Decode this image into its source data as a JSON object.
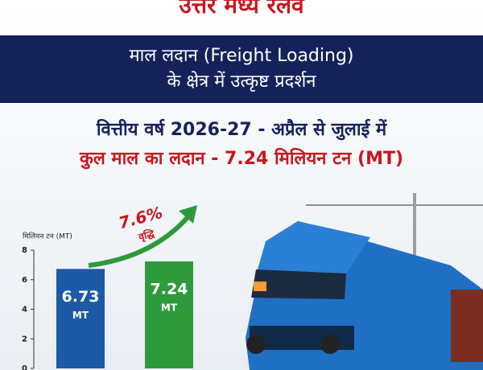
{
  "header": {
    "title": "उत्तर मध्य रेलवे",
    "banner_line1": "माल लदान (Freight Loading)",
    "banner_line2": "के क्षेत्र में उत्कृष्ट प्रदर्शन",
    "subtitle": "वित्तीय वर्ष 2026-27 - अप्रैल से जुलाई में",
    "headline": "कुल माल का लदान - 7.24 मिलियन टन (MT)"
  },
  "chart_data": {
    "type": "bar",
    "y_label": "मिलियन टन (MT)",
    "categories": [
      null,
      null
    ],
    "values": [
      6.73,
      7.24
    ],
    "unit": "MT",
    "colors": [
      "#1c5aa6",
      "#2f9a3c"
    ],
    "ylim": [
      0,
      8
    ],
    "yticks": [
      0,
      2,
      4,
      6,
      8
    ],
    "annotation": "7.6%",
    "annotation_sub": "वृद्धि"
  }
}
